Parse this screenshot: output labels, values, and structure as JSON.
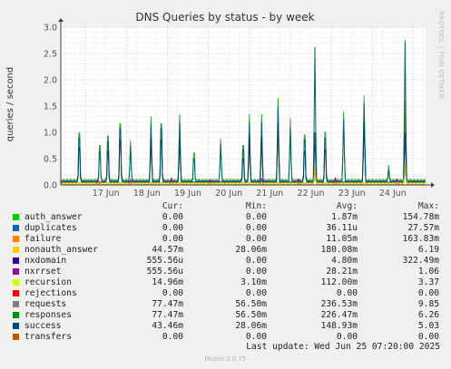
{
  "chart_data": {
    "type": "line",
    "title": "DNS Queries by status - by week",
    "ylabel": "queries / second",
    "xlabel": "",
    "ylim": [
      0,
      3.0
    ],
    "y_ticks": [
      "0.0",
      "0.5",
      "1.0",
      "1.5",
      "2.0",
      "2.5",
      "3.0"
    ],
    "y_tick_values": [
      0,
      0.5,
      1.0,
      1.5,
      2.0,
      2.5,
      3.0
    ],
    "x_ticks": [
      "17 Jun",
      "18 Jun",
      "19 Jun",
      "20 Jun",
      "21 Jun",
      "22 Jun",
      "23 Jun",
      "24 Jun"
    ],
    "x_range_days": [
      16.4,
      25.3
    ],
    "grid": true,
    "legend_placement": "bottom",
    "series": [
      {
        "name": "responses",
        "color": "#33aa33",
        "peaks": [
          [
            16.85,
            1.38
          ],
          [
            17.35,
            1.05
          ],
          [
            17.55,
            1.3
          ],
          [
            17.85,
            1.63
          ],
          [
            18.1,
            0.85
          ],
          [
            18.6,
            1.3
          ],
          [
            18.85,
            1.63
          ],
          [
            19.3,
            1.35
          ],
          [
            19.65,
            0.85
          ],
          [
            20.3,
            0.88
          ],
          [
            20.85,
            1.05
          ],
          [
            21.0,
            1.35
          ],
          [
            21.3,
            1.35
          ],
          [
            21.7,
            1.65
          ],
          [
            22.0,
            1.27
          ],
          [
            22.35,
            1.33
          ],
          [
            22.85,
            1.4
          ],
          [
            23.3,
            1.4
          ],
          [
            23.8,
            1.7
          ],
          [
            24.4,
            0.38
          ],
          [
            24.8,
            1.6
          ]
        ],
        "base": 0.07
      },
      {
        "name": "requests",
        "color": "#006666",
        "peaks": [
          [
            16.85,
            1.25
          ],
          [
            17.35,
            0.9
          ],
          [
            17.55,
            1.15
          ],
          [
            17.85,
            1.5
          ],
          [
            18.1,
            0.75
          ],
          [
            18.6,
            1.15
          ],
          [
            18.85,
            1.5
          ],
          [
            19.3,
            1.2
          ],
          [
            19.65,
            0.7
          ],
          [
            20.3,
            0.78
          ],
          [
            20.85,
            0.95
          ],
          [
            21.0,
            1.2
          ],
          [
            21.3,
            1.2
          ],
          [
            21.7,
            1.5
          ],
          [
            22.0,
            1.1
          ],
          [
            22.35,
            1.2
          ],
          [
            22.6,
            2.62
          ],
          [
            22.85,
            1.25
          ],
          [
            23.3,
            1.25
          ],
          [
            23.8,
            1.55
          ],
          [
            24.4,
            0.3
          ],
          [
            24.8,
            2.75
          ]
        ],
        "base": 0.05
      },
      {
        "name": "success",
        "color": "#004466",
        "peaks": [
          [
            16.85,
            1.0
          ],
          [
            17.55,
            0.9
          ],
          [
            17.85,
            1.2
          ],
          [
            18.6,
            0.9
          ],
          [
            18.85,
            1.2
          ],
          [
            19.3,
            0.9
          ],
          [
            20.85,
            0.7
          ],
          [
            21.0,
            0.9
          ],
          [
            21.3,
            0.9
          ],
          [
            21.7,
            1.2
          ],
          [
            22.35,
            0.9
          ],
          [
            22.6,
            1.0
          ],
          [
            22.85,
            0.95
          ],
          [
            23.8,
            1.2
          ],
          [
            24.8,
            1.0
          ]
        ],
        "base": 0.04
      },
      {
        "name": "nxrrset",
        "color": "#aa00aa",
        "peaks": [
          [
            17.3,
            0.12
          ],
          [
            18.1,
            0.1
          ],
          [
            19.1,
            0.14
          ],
          [
            20.05,
            0.12
          ],
          [
            21.3,
            0.13
          ],
          [
            22.2,
            0.12
          ],
          [
            23.1,
            0.14
          ],
          [
            24.6,
            0.12
          ]
        ],
        "base": 0.0
      },
      {
        "name": "recursion",
        "color": "#c8c800",
        "peaks": [
          [
            22.6,
            0.35
          ],
          [
            24.8,
            0.4
          ]
        ],
        "base": 0.01
      },
      {
        "name": "nonauth_answer",
        "color": "#d4a000",
        "peaks": [
          [
            22.6,
            0.3
          ],
          [
            24.8,
            0.32
          ]
        ],
        "base": 0.03
      }
    ]
  },
  "watermark": "RRDTOOL / TOBI OETIKER",
  "legend": {
    "headers": {
      "cur": "Cur:",
      "min": "Min:",
      "avg": "Avg:",
      "max": "Max:"
    },
    "rows": [
      {
        "name": "auth_answer",
        "color": "#00cc00",
        "cur": "0.00",
        "min": "0.00",
        "avg": "1.87m",
        "max": "154.78m"
      },
      {
        "name": "duplicates",
        "color": "#0066b3",
        "cur": "0.00",
        "min": "0.00",
        "avg": "36.11u",
        "max": "27.57m"
      },
      {
        "name": "failure",
        "color": "#ff8000",
        "cur": "0.00",
        "min": "0.00",
        "avg": "11.05m",
        "max": "163.83m"
      },
      {
        "name": "nonauth_answer",
        "color": "#ffcc00",
        "cur": "44.57m",
        "min": "28.06m",
        "avg": "180.08m",
        "max": "6.19"
      },
      {
        "name": "nxdomain",
        "color": "#330099",
        "cur": "555.56u",
        "min": "0.00",
        "avg": "4.80m",
        "max": "322.49m"
      },
      {
        "name": "nxrrset",
        "color": "#990099",
        "cur": "555.56u",
        "min": "0.00",
        "avg": "28.21m",
        "max": "1.06"
      },
      {
        "name": "recursion",
        "color": "#ccff00",
        "cur": "14.96m",
        "min": "3.10m",
        "avg": "112.00m",
        "max": "3.37"
      },
      {
        "name": "rejections",
        "color": "#ff0000",
        "cur": "0.00",
        "min": "0.00",
        "avg": "0.00",
        "max": "0.00"
      },
      {
        "name": "requests",
        "color": "#808080",
        "cur": "77.47m",
        "min": "56.50m",
        "avg": "236.53m",
        "max": "9.85"
      },
      {
        "name": "responses",
        "color": "#008f00",
        "cur": "77.47m",
        "min": "56.50m",
        "avg": "226.47m",
        "max": "6.26"
      },
      {
        "name": "success",
        "color": "#00487d",
        "cur": "43.46m",
        "min": "28.06m",
        "avg": "148.93m",
        "max": "5.03"
      },
      {
        "name": "transfers",
        "color": "#b35a00",
        "cur": "0.00",
        "min": "0.00",
        "avg": "0.00",
        "max": "0.00"
      }
    ]
  },
  "footer": {
    "last_update": "Last update: Wed Jun 25 07:20:00 2025",
    "version": "Munin 2.0.75"
  }
}
